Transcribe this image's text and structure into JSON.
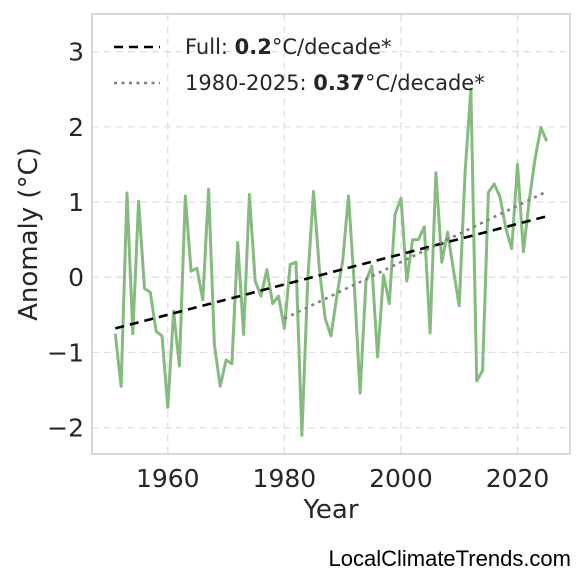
{
  "chart_data": {
    "type": "line",
    "xlabel": "Year",
    "ylabel": "Anomaly (°C)",
    "xlim": [
      1947,
      2029
    ],
    "ylim": [
      -2.35,
      3.5
    ],
    "xticks": [
      1960,
      1980,
      2000,
      2020
    ],
    "xtick_labels": [
      "1960",
      "1980",
      "2000",
      "2020"
    ],
    "yticks": [
      -2,
      -1,
      0,
      1,
      2,
      3
    ],
    "ytick_labels": [
      "−2",
      "−1",
      "0",
      "1",
      "2",
      "3"
    ],
    "grid": true,
    "legend_position": "top-left",
    "series": [
      {
        "color": "#86bb7f",
        "x": [
          1951,
          1952,
          1953,
          1954,
          1955,
          1956,
          1957,
          1958,
          1959,
          1960,
          1961,
          1962,
          1963,
          1964,
          1965,
          1966,
          1967,
          1968,
          1969,
          1970,
          1971,
          1972,
          1973,
          1974,
          1975,
          1976,
          1977,
          1978,
          1979,
          1980,
          1981,
          1982,
          1983,
          1984,
          1985,
          1986,
          1987,
          1988,
          1989,
          1990,
          1991,
          1992,
          1993,
          1994,
          1995,
          1996,
          1997,
          1998,
          1999,
          2000,
          2001,
          2002,
          2003,
          2004,
          2005,
          2006,
          2007,
          2008,
          2009,
          2010,
          2011,
          2012,
          2013,
          2014,
          2015,
          2016,
          2017,
          2018,
          2019,
          2020,
          2021,
          2022,
          2023,
          2024,
          2025
        ],
        "y": [
          -0.75,
          -1.45,
          1.12,
          -0.75,
          1.01,
          -0.15,
          -0.2,
          -0.72,
          -0.78,
          -1.73,
          -0.45,
          -1.18,
          1.08,
          0.08,
          0.12,
          -0.3,
          1.17,
          -0.9,
          -1.45,
          -1.1,
          -1.15,
          0.46,
          -0.76,
          1.1,
          -0.05,
          -0.25,
          0.1,
          -0.35,
          -0.25,
          -0.68,
          0.17,
          0.2,
          -2.1,
          -0.05,
          1.14,
          0.12,
          -0.55,
          -0.78,
          -0.25,
          0.22,
          1.08,
          -0.1,
          -1.54,
          -0.05,
          0.15,
          -1.06,
          0.03,
          -0.35,
          0.84,
          1.05,
          -0.05,
          0.5,
          0.5,
          0.67,
          -0.74,
          1.39,
          0.2,
          0.6,
          0.1,
          -0.38,
          1.4,
          2.5,
          -1.38,
          -1.24,
          1.13,
          1.24,
          1.07,
          0.65,
          0.38,
          1.5,
          0.34,
          1.02,
          1.57,
          1.99,
          1.81
        ]
      }
    ],
    "trend_lines": [
      {
        "label": "Full: ",
        "bold": "0.2",
        "suffix": "°C/decade*",
        "style": "dashed",
        "color": "#000000",
        "x": [
          1951,
          2025
        ],
        "y": [
          -0.68,
          0.81
        ]
      },
      {
        "label": "1980-2025: ",
        "bold": "0.37",
        "suffix": "°C/decade*",
        "style": "dotted",
        "color": "#808080",
        "x": [
          1980,
          2025
        ],
        "y": [
          -0.55,
          1.14
        ]
      }
    ]
  },
  "credit": "LocalClimateTrends.com"
}
